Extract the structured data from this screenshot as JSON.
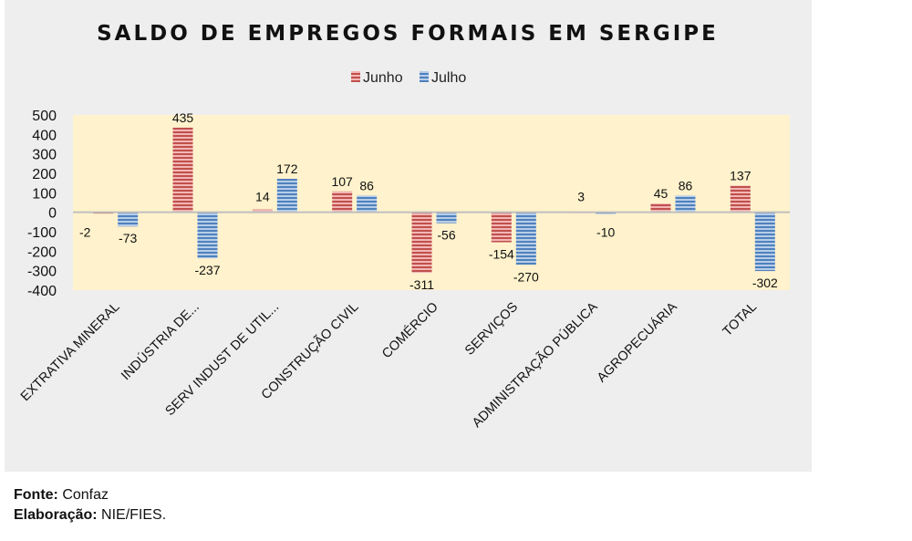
{
  "chart_data": {
    "type": "bar",
    "title": "SALDO DE EMPREGOS FORMAIS EM SERGIPE",
    "xlabel": "",
    "ylabel": "",
    "ylim": [
      -400,
      500
    ],
    "yticks": [
      500,
      400,
      300,
      200,
      100,
      0,
      -100,
      -200,
      -300,
      -400
    ],
    "grid": false,
    "legend_position": "top-center",
    "categories": [
      "EXTRATIVA MINERAL",
      "INDÚSTRIA DE...",
      "SERV INDUST DE UTIL...",
      "CONSTRUÇÃO CIVIL",
      "COMÉRCIO",
      "SERVIÇOS",
      "ADMINISTRAÇÃO PÚBLICA",
      "AGROPECUÁRIA",
      "TOTAL"
    ],
    "series": [
      {
        "name": "Junho",
        "color": "#c0504d",
        "values": [
          -2,
          435,
          14,
          107,
          -311,
          -154,
          3,
          45,
          137
        ]
      },
      {
        "name": "Julho",
        "color": "#4f81bd",
        "values": [
          -73,
          -237,
          172,
          86,
          -56,
          -270,
          -10,
          86,
          -302
        ]
      }
    ],
    "plot_background": "#fff2cc",
    "frame_background": "#eeeeee"
  },
  "footer": {
    "source_label": "Fonte:",
    "source_value": " Confaz",
    "credit_label": "Elaboração:",
    "credit_value": " NIE/FIES."
  }
}
